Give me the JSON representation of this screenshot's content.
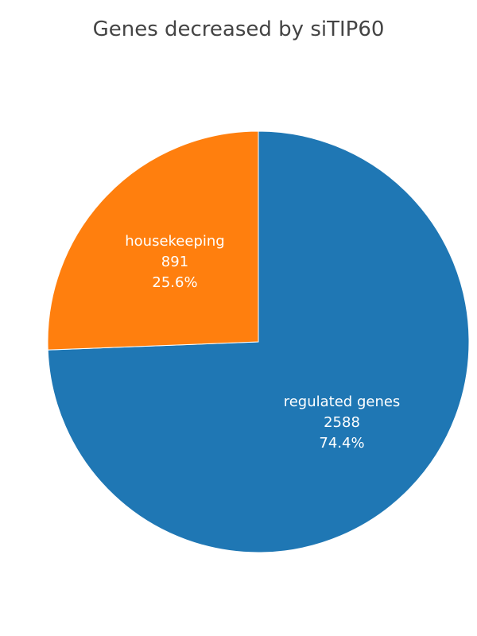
{
  "chart_data": {
    "type": "pie",
    "title": "Genes decreased by siTIP60",
    "slices": [
      {
        "label": "regulated genes",
        "value": 2588,
        "percent": "74.4%",
        "color": "#1f77b4"
      },
      {
        "label": "housekeeping",
        "value": 891,
        "percent": "25.6%",
        "color": "#ff7f0e"
      }
    ],
    "direction": "clockwise",
    "start": "top"
  }
}
